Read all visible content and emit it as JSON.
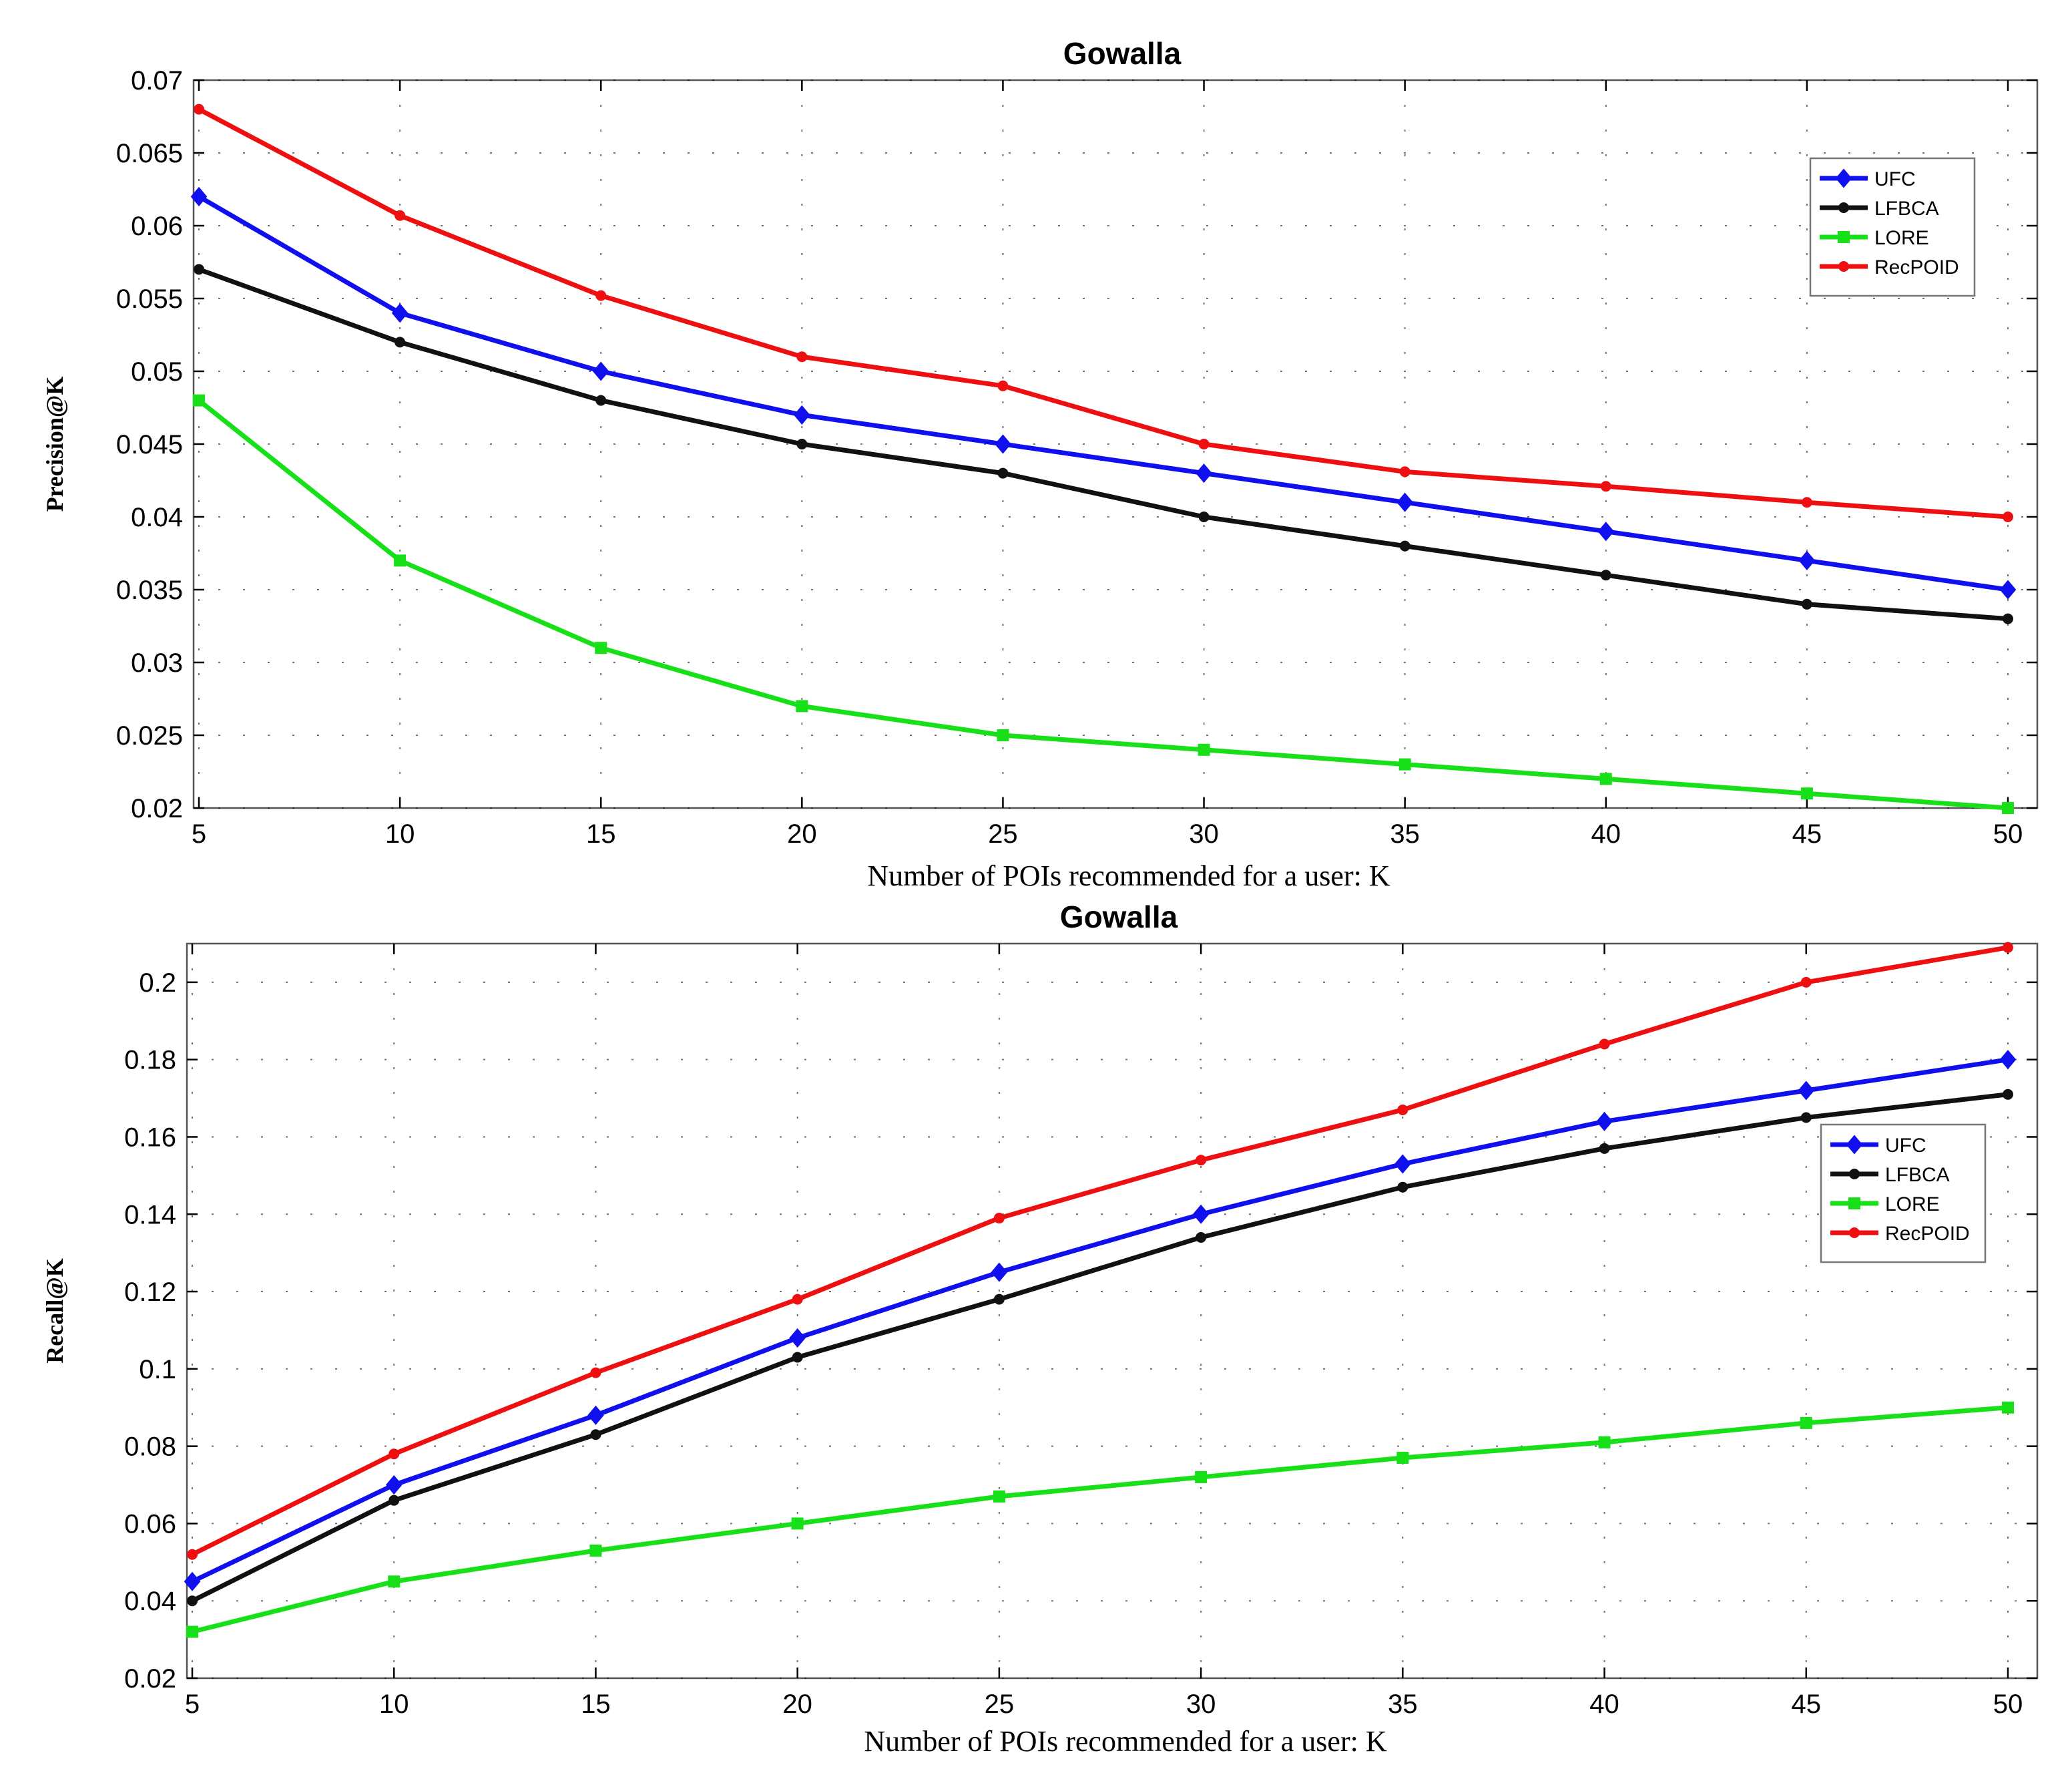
{
  "chart_data": [
    {
      "type": "line",
      "title": "Gowalla",
      "xlabel": "Number of POIs recommended for a user: K",
      "ylabel": "Precision@K",
      "x": [
        5,
        10,
        15,
        20,
        25,
        30,
        35,
        40,
        45,
        50
      ],
      "xticks": [
        "5",
        "10",
        "15",
        "20",
        "25",
        "30",
        "35",
        "40",
        "45",
        "50"
      ],
      "yticks": [
        "0.02",
        "0.025",
        "0.03",
        "0.035",
        "0.04",
        "0.045",
        "0.05",
        "0.055",
        "0.06",
        "0.065",
        "0.07"
      ],
      "ylim": [
        0.02,
        0.07
      ],
      "legend_position": "top-right",
      "series": [
        {
          "name": "UFC",
          "color": "#1010ee",
          "marker": "diamond",
          "values": [
            0.062,
            0.054,
            0.05,
            0.047,
            0.045,
            0.043,
            0.041,
            0.039,
            0.037,
            0.035
          ]
        },
        {
          "name": "LFBCA",
          "color": "#111111",
          "marker": "dot",
          "values": [
            0.057,
            0.052,
            0.048,
            0.045,
            0.043,
            0.04,
            0.038,
            0.036,
            0.034,
            0.033
          ]
        },
        {
          "name": "LORE",
          "color": "#18e018",
          "marker": "square",
          "values": [
            0.048,
            0.037,
            0.031,
            0.027,
            0.025,
            0.024,
            0.023,
            0.022,
            0.021,
            0.02
          ]
        },
        {
          "name": "RecPOID",
          "color": "#ee1010",
          "marker": "dot",
          "values": [
            0.068,
            0.0607,
            0.0552,
            0.051,
            0.049,
            0.045,
            0.0431,
            0.0421,
            0.041,
            0.04
          ]
        }
      ]
    },
    {
      "type": "line",
      "title": "Gowalla",
      "xlabel": "Number of POIs recommended for a user: K",
      "ylabel": "Recall@K",
      "x": [
        5,
        10,
        15,
        20,
        25,
        30,
        35,
        40,
        45,
        50
      ],
      "xticks": [
        "5",
        "10",
        "15",
        "20",
        "25",
        "30",
        "35",
        "40",
        "45",
        "50"
      ],
      "yticks": [
        "0.02",
        "0.04",
        "0.06",
        "0.08",
        "0.1",
        "0.12",
        "0.14",
        "0.16",
        "0.18",
        "0.2"
      ],
      "ylim": [
        0.02,
        0.21
      ],
      "legend_position": "right",
      "series": [
        {
          "name": "UFC",
          "color": "#1010ee",
          "marker": "diamond",
          "values": [
            0.045,
            0.07,
            0.088,
            0.108,
            0.125,
            0.14,
            0.153,
            0.164,
            0.172,
            0.18
          ]
        },
        {
          "name": "LFBCA",
          "color": "#111111",
          "marker": "dot",
          "values": [
            0.04,
            0.066,
            0.083,
            0.103,
            0.118,
            0.134,
            0.147,
            0.157,
            0.165,
            0.171
          ]
        },
        {
          "name": "LORE",
          "color": "#18e018",
          "marker": "square",
          "values": [
            0.032,
            0.045,
            0.053,
            0.06,
            0.067,
            0.072,
            0.077,
            0.081,
            0.086,
            0.09
          ]
        },
        {
          "name": "RecPOID",
          "color": "#ee1010",
          "marker": "dot",
          "values": [
            0.052,
            0.078,
            0.099,
            0.118,
            0.139,
            0.154,
            0.167,
            0.184,
            0.2,
            0.209
          ]
        }
      ]
    }
  ]
}
